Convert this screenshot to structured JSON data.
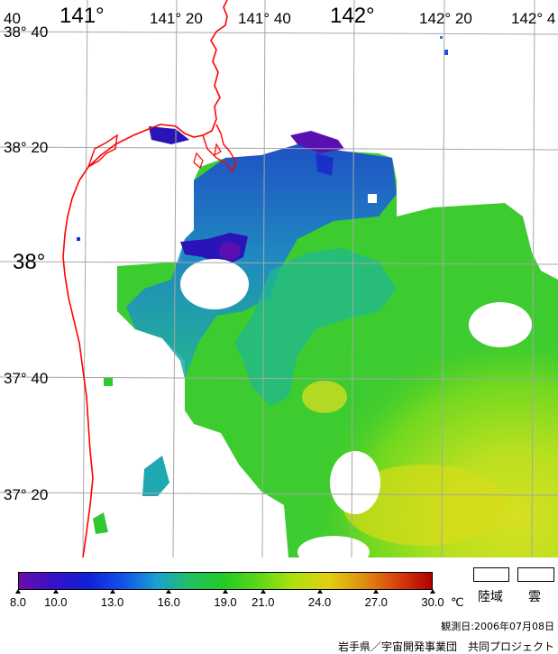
{
  "map": {
    "longitude_labels": [
      "141°",
      "141° 20",
      "141° 40",
      "142°",
      "142° 20",
      "142° 4"
    ],
    "latitude_labels": [
      "38° 40",
      "38° 20",
      "38°",
      "37° 40",
      "37° 20"
    ],
    "corner_label": "40",
    "land_color": "#ffffff",
    "cloud_color": "#ffffff",
    "coastline_color": "#ff0000",
    "grid_color": "#a6a6a6"
  },
  "colorbar": {
    "ticks": [
      "8.0",
      "10.0",
      "13.0",
      "16.0",
      "19.0",
      "21.0",
      "24.0",
      "27.0",
      "30.0"
    ],
    "unit": "℃",
    "colors": [
      "#6a0dad",
      "#3a10c8",
      "#1020d8",
      "#1450e8",
      "#1aa0d0",
      "#22c060",
      "#22cc22",
      "#60d818",
      "#b0e010",
      "#e0d010",
      "#e09010",
      "#d84010",
      "#b00000"
    ]
  },
  "legend": {
    "land_label": "陸域",
    "cloud_label": "雲"
  },
  "footer": {
    "observation_date": "観測日:2006年07月08日",
    "credit": "岩手県／宇宙開発事業団　共同プロジェクト"
  }
}
